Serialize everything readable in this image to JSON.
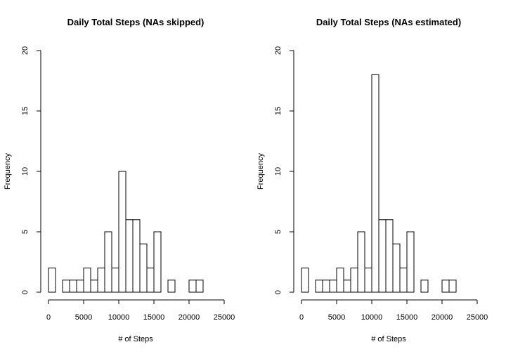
{
  "chart_data": [
    {
      "type": "bar",
      "title": "Daily Total Steps (NAs skipped)",
      "xlabel": "# of Steps",
      "ylabel": "Frequency",
      "bin_width": 1000,
      "bin_edges_start": 0,
      "values": [
        2,
        0,
        1,
        1,
        1,
        2,
        1,
        2,
        5,
        2,
        10,
        6,
        6,
        4,
        2,
        5,
        0,
        1,
        0,
        0,
        1,
        1
      ],
      "xlim": [
        0,
        25000
      ],
      "ylim": [
        0,
        20
      ],
      "x_ticks": [
        "0",
        "5000",
        "10000",
        "15000",
        "20000",
        "25000"
      ],
      "y_ticks": [
        "0",
        "5",
        "10",
        "15",
        "20"
      ]
    },
    {
      "type": "bar",
      "title": "Daily Total Steps (NAs estimated)",
      "xlabel": "# of Steps",
      "ylabel": "Frequency",
      "bin_width": 1000,
      "bin_edges_start": 0,
      "values": [
        2,
        0,
        1,
        1,
        1,
        2,
        1,
        2,
        5,
        2,
        18,
        6,
        6,
        4,
        2,
        5,
        0,
        1,
        0,
        0,
        1,
        1
      ],
      "xlim": [
        0,
        25000
      ],
      "ylim": [
        0,
        20
      ],
      "x_ticks": [
        "0",
        "5000",
        "10000",
        "15000",
        "20000",
        "25000"
      ],
      "y_ticks": [
        "0",
        "5",
        "10",
        "15",
        "20"
      ]
    }
  ],
  "colors": {
    "bar_fill": "#ffffff",
    "bar_stroke": "#000000",
    "axis": "#000000"
  }
}
